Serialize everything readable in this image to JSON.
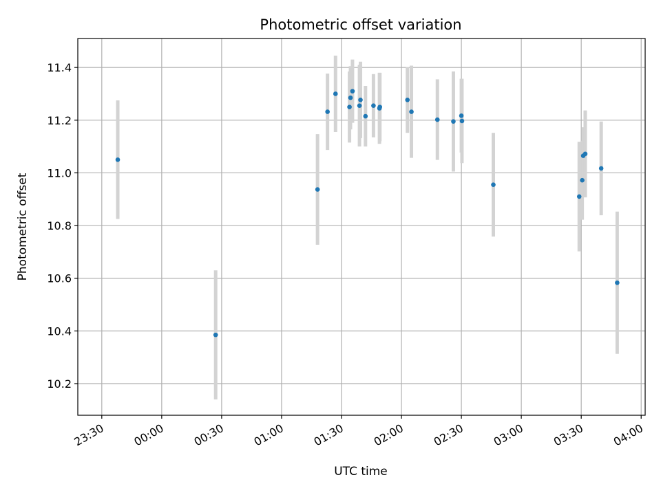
{
  "chart_data": {
    "type": "scatter",
    "title": "Photometric offset variation",
    "xlabel": "UTC time",
    "ylabel": "Photometric offset",
    "x_axis_type": "time",
    "xlim": [
      "23:18",
      "04:02"
    ],
    "ylim": [
      10.08,
      11.51
    ],
    "x_ticks": [
      "23:30",
      "00:00",
      "00:30",
      "01:00",
      "01:30",
      "02:00",
      "02:30",
      "03:00",
      "03:30",
      "04:00"
    ],
    "y_ticks": [
      10.2,
      10.4,
      10.6,
      10.8,
      11.0,
      11.2,
      11.4
    ],
    "grid": true,
    "error_bar_color": "#d3d3d3",
    "point_color": "#1f77b4",
    "points": [
      {
        "time": "23:38",
        "y": 11.05,
        "err": 0.225
      },
      {
        "time": "00:27",
        "y": 10.385,
        "err": 0.245
      },
      {
        "time": "01:18",
        "y": 10.937,
        "err": 0.21
      },
      {
        "time": "01:23",
        "y": 11.232,
        "err": 0.145
      },
      {
        "time": "01:27",
        "y": 11.3,
        "err": 0.145
      },
      {
        "time": "01:34",
        "y": 11.25,
        "err": 0.135
      },
      {
        "time": "01:34.5",
        "y": 11.285,
        "err": 0.12
      },
      {
        "time": "01:35.5",
        "y": 11.31,
        "err": 0.12
      },
      {
        "time": "01:39",
        "y": 11.255,
        "err": 0.155
      },
      {
        "time": "01:39.5",
        "y": 11.277,
        "err": 0.145
      },
      {
        "time": "01:42",
        "y": 11.215,
        "err": 0.115
      },
      {
        "time": "01:46",
        "y": 11.255,
        "err": 0.12
      },
      {
        "time": "01:49",
        "y": 11.245,
        "err": 0.135
      },
      {
        "time": "01:49.2",
        "y": 11.25,
        "err": 0.13
      },
      {
        "time": "02:03",
        "y": 11.277,
        "err": 0.125
      },
      {
        "time": "02:05",
        "y": 11.232,
        "err": 0.175
      },
      {
        "time": "02:18",
        "y": 11.202,
        "err": 0.153
      },
      {
        "time": "02:26",
        "y": 11.195,
        "err": 0.19
      },
      {
        "time": "02:30",
        "y": 11.217,
        "err": 0.14
      },
      {
        "time": "02:30.3",
        "y": 11.197,
        "err": 0.16
      },
      {
        "time": "02:46",
        "y": 10.955,
        "err": 0.197
      },
      {
        "time": "03:29",
        "y": 10.91,
        "err": 0.208
      },
      {
        "time": "03:30.5",
        "y": 10.972,
        "err": 0.15
      },
      {
        "time": "03:31",
        "y": 11.065,
        "err": 0.108
      },
      {
        "time": "03:32",
        "y": 11.072,
        "err": 0.165
      },
      {
        "time": "03:40",
        "y": 11.017,
        "err": 0.178
      },
      {
        "time": "03:48",
        "y": 10.583,
        "err": 0.27
      }
    ]
  }
}
